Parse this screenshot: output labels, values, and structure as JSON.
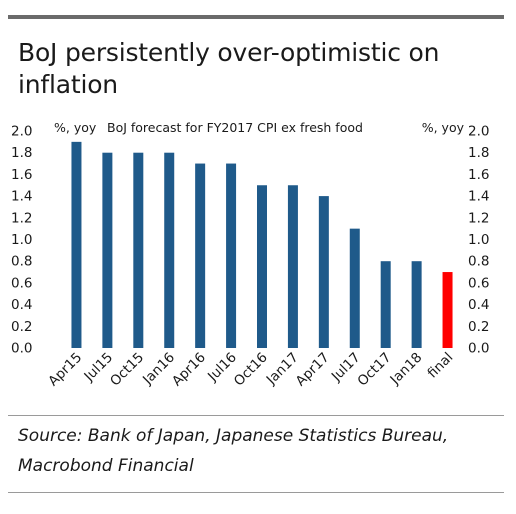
{
  "title": "BoJ persistently over-optimistic on inflation",
  "source": "Source: Bank of Japan, Japanese Statistics Bureau, Macrobond Financial",
  "chart_data": {
    "type": "bar",
    "legend": "BoJ forecast for FY2017 CPI ex fresh food",
    "y_unit_left": "%, yoy",
    "y_unit_right": "%, yoy",
    "categories": [
      "Apr15",
      "Jul15",
      "Oct15",
      "Jan16",
      "Apr16",
      "Jul16",
      "Oct16",
      "Jan17",
      "Apr17",
      "Jul17",
      "Oct17",
      "Jan18",
      "final"
    ],
    "values": [
      1.9,
      1.8,
      1.8,
      1.8,
      1.7,
      1.7,
      1.5,
      1.5,
      1.4,
      1.1,
      0.8,
      0.8,
      0.7
    ],
    "highlight_index": 12,
    "bar_color": "#1f5a8a",
    "highlight_color": "#ff0000",
    "ylim": [
      0,
      2.0
    ],
    "yticks": [
      "0.0",
      "0.2",
      "0.4",
      "0.6",
      "0.8",
      "1.0",
      "1.2",
      "1.4",
      "1.6",
      "1.8",
      "2.0"
    ],
    "grid": false
  }
}
